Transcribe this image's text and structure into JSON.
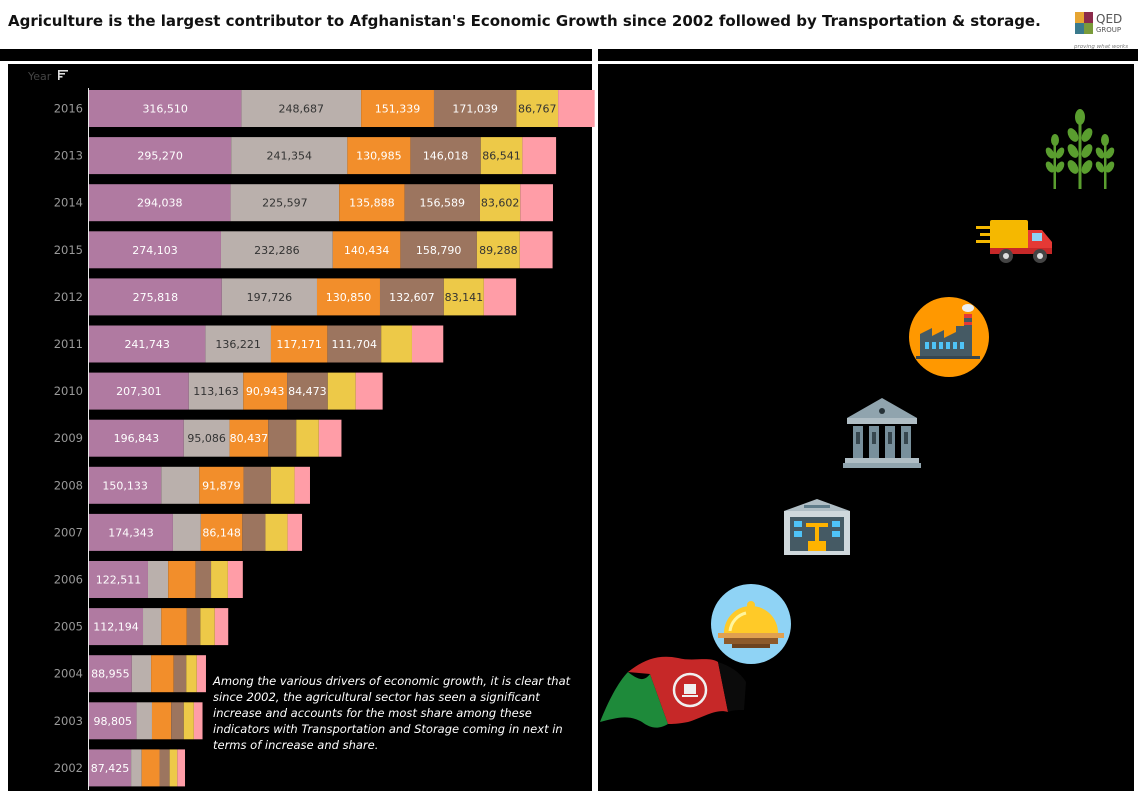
{
  "title": "Agriculture is the largest contributor to Afghanistan's Economic Growth since 2002 followed by Transportation & storage.",
  "logo": {
    "word": "QED",
    "word2": "GROUP",
    "tagline": "proving what works"
  },
  "year_header": "Year",
  "annotation": "Among the various drivers of economic growth, it is clear that since 2002, the agricultural sector has seen a significant increase and accounts for the most share among these indicators with Transportation and Storage coming in next in terms of increase and share.",
  "colors": {
    "agriculture": "#b07aa1",
    "transportation": "#bab0ac",
    "manufacturing": "#f28e2b",
    "public_admin": "#9c755f",
    "construction": "#edc948",
    "accommodation": "#ff9da7"
  },
  "icons": [
    "wheat-icon",
    "delivery-truck-icon",
    "factory-icon",
    "government-building-icon",
    "construction-site-icon",
    "food-cloche-icon",
    "afghanistan-flag-icon"
  ],
  "chart_data": {
    "type": "bar",
    "orientation": "horizontal",
    "stacked": true,
    "categories": [
      "2016",
      "2013",
      "2014",
      "2015",
      "2012",
      "2011",
      "2010",
      "2009",
      "2008",
      "2007",
      "2006",
      "2005",
      "2004",
      "2003",
      "2002"
    ],
    "series": [
      {
        "values": [
          316510,
          295270,
          294038,
          274103,
          275818,
          241743,
          207301,
          196843,
          150133,
          174343,
          122511,
          112194,
          88955,
          98805,
          87425
        ],
        "labels": [
          "316,510",
          "295,270",
          "294,038",
          "274,103",
          "275,818",
          "241,743",
          "207,301",
          "196,843",
          "150,133",
          "174,343",
          "122,511",
          "112,194",
          "88,955",
          "98,805",
          "87,425"
        ]
      },
      {
        "values": [
          248687,
          241354,
          225597,
          232286,
          197726,
          136221,
          113163,
          95086,
          79000,
          58000,
          42000,
          38000,
          40000,
          32000,
          22000
        ],
        "labels": [
          "248,687",
          "241,354",
          "225,597",
          "232,286",
          "197,726",
          "136,221",
          "113,163",
          "95,086",
          "",
          "",
          "",
          "",
          "",
          "",
          ""
        ]
      },
      {
        "values": [
          151339,
          130985,
          135888,
          140434,
          130850,
          117171,
          90943,
          80437,
          91879,
          86148,
          57000,
          53000,
          47000,
          40000,
          37000
        ],
        "labels": [
          "151,339",
          "130,985",
          "135,888",
          "140,434",
          "130,850",
          "117,171",
          "90,943",
          "80,437",
          "91,879",
          "86,148",
          "",
          "",
          "",
          "",
          ""
        ]
      },
      {
        "values": [
          171039,
          146018,
          156589,
          158790,
          132607,
          111704,
          84473,
          58000,
          57000,
          48000,
          32000,
          28000,
          26000,
          26000,
          21000
        ],
        "labels": [
          "171,039",
          "146,018",
          "156,589",
          "158,790",
          "132,607",
          "111,704",
          "84,473",
          "",
          "",
          "",
          "",
          "",
          "",
          "",
          ""
        ]
      },
      {
        "values": [
          86767,
          86541,
          83602,
          89288,
          83141,
          64000,
          58000,
          47000,
          49000,
          46000,
          35000,
          30000,
          22000,
          21000,
          16000
        ],
        "labels": [
          "86,767",
          "86,541",
          "83,602",
          "89,288",
          "83,141",
          "",
          "",
          "",
          "",
          "",
          "",
          "",
          "",
          "",
          ""
        ]
      },
      {
        "values": [
          76000,
          70000,
          68000,
          68000,
          67000,
          65000,
          56000,
          47000,
          32000,
          30000,
          31000,
          28000,
          19000,
          18000,
          16000
        ],
        "labels": [
          "",
          "",
          "",
          "",
          "",
          "",
          "",
          "",
          "",
          "",
          "",
          "",
          "",
          "",
          ""
        ]
      }
    ],
    "xlim": [
      0,
      1105000
    ],
    "grid": false,
    "legend": "none"
  }
}
